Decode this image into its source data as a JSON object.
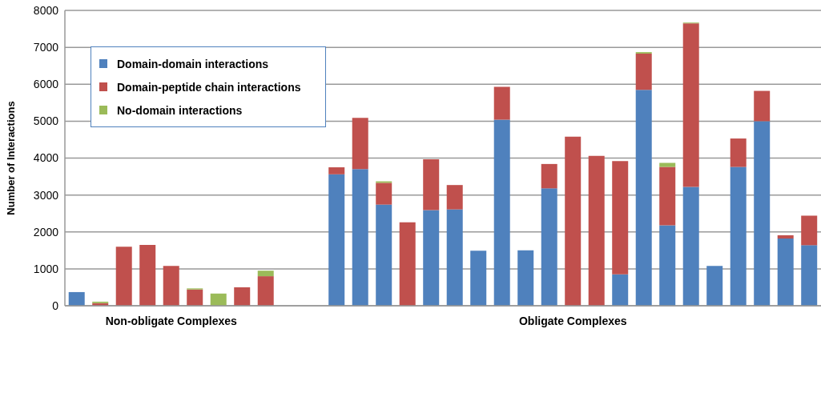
{
  "chart_data": {
    "type": "bar",
    "stacked": true,
    "ylabel": "Number of Interactions",
    "categories": [
      null,
      null,
      null,
      null,
      "Non-obligate Complexes",
      null,
      null,
      null,
      null,
      null,
      null,
      null,
      null,
      null,
      null,
      null,
      null,
      null,
      null,
      null,
      null,
      "Obligate Complexes",
      null,
      null,
      null,
      null,
      null,
      null,
      null,
      null,
      null,
      null
    ],
    "series": [
      {
        "name": "Domain-domain interactions",
        "color": "#4f81bd",
        "values": [
          370,
          null,
          null,
          null,
          null,
          null,
          null,
          null,
          null,
          null,
          null,
          3560,
          3700,
          2740,
          null,
          2590,
          2610,
          1490,
          5040,
          1500,
          3180,
          null,
          null,
          850,
          5850,
          2180,
          3220,
          1080,
          3760,
          5000,
          1820,
          1640
        ]
      },
      {
        "name": "Domain-peptide chain interactions",
        "color": "#c0504d",
        "values": [
          null,
          70,
          1600,
          1650,
          1080,
          440,
          null,
          500,
          800,
          null,
          null,
          190,
          1390,
          590,
          2260,
          1380,
          660,
          null,
          890,
          null,
          660,
          4580,
          4060,
          3070,
          980,
          1580,
          4430,
          null,
          770,
          820,
          90,
          800
        ]
      },
      {
        "name": "No-domain interactions",
        "color": "#9bbb59",
        "values": [
          null,
          40,
          null,
          null,
          null,
          30,
          330,
          null,
          150,
          null,
          null,
          null,
          null,
          40,
          null,
          null,
          null,
          null,
          null,
          null,
          null,
          null,
          null,
          null,
          40,
          110,
          20,
          null,
          null,
          null,
          null,
          null
        ]
      }
    ],
    "ylim": [
      0,
      8000
    ],
    "yticks": [
      0,
      1000,
      2000,
      3000,
      4000,
      5000,
      6000,
      7000,
      8000
    ],
    "grid": "y",
    "legend": "top left"
  }
}
